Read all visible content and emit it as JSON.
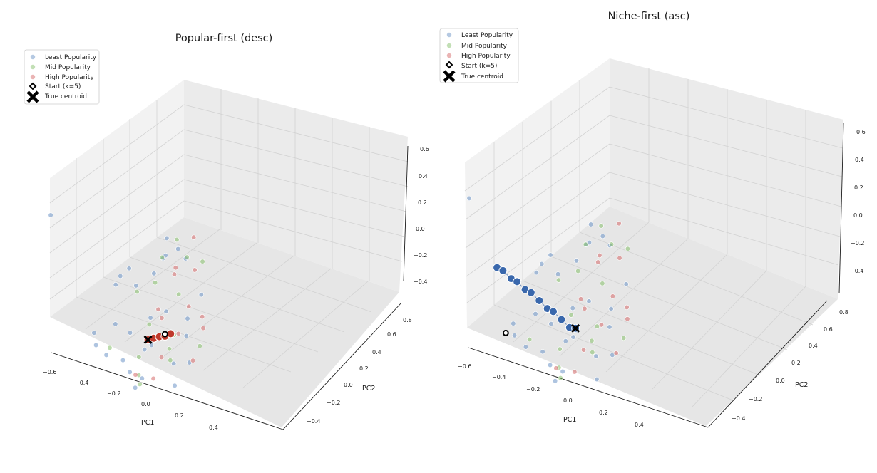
{
  "chart_data": [
    {
      "type": "scatter",
      "title": "Popular-first (desc)",
      "xlabel": "PC1",
      "ylabel": "PC2",
      "zlabel": "",
      "xlim": [
        -0.6,
        0.6
      ],
      "ylim": [
        -0.5,
        0.85
      ],
      "zlim": [
        -0.5,
        0.65
      ],
      "x_ticks": [
        "−0.6",
        "−0.4",
        "−0.2",
        "0.0",
        "0.2",
        "0.4"
      ],
      "y_ticks": [
        "−0.4",
        "−0.2",
        "0.0",
        "0.2",
        "0.4",
        "0.6",
        "0.8"
      ],
      "z_ticks": [
        "−0.4",
        "−0.2",
        "0.0",
        "0.2",
        "0.4",
        "0.6"
      ],
      "legend_position": "top-left",
      "legend": [
        "Least Popularity",
        "Mid Popularity",
        "High Popularity",
        "Start (k=5)",
        "True centroid"
      ],
      "series_colors": {
        "Least Popularity": "#6b93c6",
        "Mid Popularity": "#86c06b",
        "High Popularity": "#d66a6a",
        "path": "#c0392b"
      },
      "start": [
        0.1,
        0.0,
        -0.2
      ],
      "true_centroid": [
        -0.05,
        0.0,
        -0.18
      ],
      "path": [
        [
          -0.05,
          0.0,
          -0.18
        ],
        [
          0.0,
          0.0,
          -0.19
        ],
        [
          0.05,
          0.0,
          -0.2
        ],
        [
          0.1,
          0.0,
          -0.22
        ],
        [
          0.15,
          0.0,
          -0.22
        ]
      ],
      "points": {
        "least": [
          [
            -0.12,
            -0.1,
            -0.15
          ],
          [
            0.05,
            0.2,
            -0.2
          ],
          [
            0.2,
            0.3,
            0.2
          ],
          [
            -0.3,
            0.1,
            0.0
          ],
          [
            -0.2,
            -0.25,
            -0.25
          ],
          [
            0.1,
            -0.2,
            -0.3
          ],
          [
            -0.45,
            0.2,
            -0.1
          ],
          [
            0.0,
            0.4,
            -0.05
          ],
          [
            0.3,
            0.5,
            0.0
          ],
          [
            -0.1,
            0.3,
            0.25
          ],
          [
            -0.25,
            -0.1,
            -0.3
          ],
          [
            0.15,
            0.1,
            -0.1
          ],
          [
            0.25,
            -0.1,
            -0.2
          ],
          [
            -0.35,
            -0.2,
            -0.05
          ],
          [
            0.4,
            0.3,
            0.1
          ],
          [
            -0.15,
            0.15,
            -0.2
          ],
          [
            0.05,
            -0.35,
            -0.35
          ],
          [
            0.35,
            0.6,
            0.05
          ],
          [
            -0.2,
            0.35,
            0.1
          ],
          [
            0.0,
            0.05,
            -0.3
          ],
          [
            -0.55,
            -0.1,
            0.1
          ],
          [
            0.45,
            0.6,
            -0.1
          ],
          [
            -0.05,
            -0.15,
            -0.05
          ],
          [
            0.2,
            -0.3,
            -0.25
          ],
          [
            -0.4,
            0.05,
            -0.2
          ],
          [
            0.1,
            0.25,
            0.15
          ],
          [
            -0.3,
            -0.35,
            -0.2
          ],
          [
            0.3,
            0.0,
            -0.15
          ],
          [
            0.5,
            0.2,
            -0.2
          ],
          [
            -0.1,
            0.5,
            0.0
          ],
          [
            -0.6,
            0.8,
            0.55
          ]
        ],
        "mid": [
          [
            0.3,
            0.2,
            -0.1
          ],
          [
            0.45,
            0.4,
            0.0
          ],
          [
            -0.2,
            -0.2,
            -0.35
          ],
          [
            0.1,
            -0.1,
            -0.25
          ],
          [
            -0.35,
            0.1,
            -0.2
          ],
          [
            0.2,
            0.05,
            -0.3
          ],
          [
            0.55,
            0.3,
            0.0
          ],
          [
            -0.05,
            0.25,
            0.05
          ],
          [
            0.35,
            -0.15,
            -0.3
          ],
          [
            -0.25,
            -0.3,
            -0.15
          ],
          [
            0.0,
            0.1,
            -0.15
          ],
          [
            0.4,
            0.5,
            0.1
          ],
          [
            0.15,
            0.35,
            -0.05
          ],
          [
            -0.15,
            -0.05,
            -0.25
          ],
          [
            0.25,
            0.45,
            0.05
          ],
          [
            0.05,
            -0.25,
            -0.2
          ]
        ],
        "high": [
          [
            0.2,
            -0.05,
            -0.2
          ],
          [
            0.35,
            0.1,
            -0.15
          ],
          [
            0.5,
            0.35,
            -0.1
          ],
          [
            0.25,
            -0.25,
            -0.3
          ],
          [
            0.15,
            0.2,
            -0.25
          ],
          [
            0.45,
            0.05,
            -0.25
          ],
          [
            -0.1,
            -0.25,
            -0.3
          ],
          [
            0.3,
            0.3,
            0.0
          ],
          [
            0.55,
            0.5,
            0.05
          ],
          [
            0.05,
            -0.05,
            -0.35
          ],
          [
            0.4,
            -0.1,
            -0.2
          ],
          [
            0.1,
            0.15,
            -0.1
          ],
          [
            0.35,
            0.4,
            -0.05
          ],
          [
            -0.2,
            -0.1,
            -0.35
          ]
        ]
      }
    },
    {
      "type": "scatter",
      "title": "Niche-first (asc)",
      "xlabel": "PC1",
      "ylabel": "PC2",
      "zlabel": "",
      "xlim": [
        -0.6,
        0.6
      ],
      "ylim": [
        -0.5,
        0.85
      ],
      "zlim": [
        -0.5,
        0.65
      ],
      "x_ticks": [
        "−0.6",
        "−0.4",
        "−0.2",
        "0.0",
        "0.2",
        "0.4"
      ],
      "y_ticks": [
        "−0.4",
        "−0.2",
        "0.0",
        "0.2",
        "0.4",
        "0.6",
        "0.8"
      ],
      "z_ticks": [
        "−0.4",
        "−0.2",
        "0.0",
        "0.2",
        "0.4",
        "0.6"
      ],
      "legend_position": "top-left",
      "legend": [
        "Least Popularity",
        "Mid Popularity",
        "High Popularity",
        "Start (k=5)",
        "True centroid"
      ],
      "series_colors": {
        "Least Popularity": "#6b93c6",
        "Mid Popularity": "#86c06b",
        "High Popularity": "#d66a6a",
        "path": "#3a68ac"
      },
      "start": [
        -0.55,
        0.1,
        -0.05
      ],
      "true_centroid": [
        0.0,
        0.0,
        -0.18
      ],
      "path": [
        [
          -0.55,
          0.3,
          0.35
        ],
        [
          -0.5,
          0.3,
          0.3
        ],
        [
          -0.45,
          0.25,
          0.25
        ],
        [
          -0.4,
          0.25,
          0.2
        ],
        [
          -0.35,
          0.2,
          0.15
        ],
        [
          -0.3,
          0.2,
          0.1
        ],
        [
          -0.25,
          0.15,
          0.05
        ],
        [
          -0.2,
          0.1,
          0.0
        ],
        [
          -0.15,
          0.1,
          -0.05
        ],
        [
          -0.1,
          0.05,
          -0.1
        ],
        [
          -0.05,
          0.0,
          -0.15
        ],
        [
          0.0,
          0.0,
          -0.18
        ]
      ],
      "points": {
        "least": [
          [
            -0.12,
            -0.1,
            -0.15
          ],
          [
            0.05,
            0.2,
            -0.2
          ],
          [
            0.2,
            0.3,
            0.2
          ],
          [
            -0.3,
            0.1,
            0.0
          ],
          [
            -0.2,
            -0.25,
            -0.25
          ],
          [
            0.1,
            -0.2,
            -0.3
          ],
          [
            -0.45,
            0.2,
            -0.1
          ],
          [
            0.0,
            0.4,
            -0.05
          ],
          [
            0.3,
            0.5,
            0.0
          ],
          [
            -0.1,
            0.3,
            0.25
          ],
          [
            -0.25,
            -0.1,
            -0.3
          ],
          [
            0.15,
            0.1,
            -0.1
          ],
          [
            0.25,
            -0.1,
            -0.2
          ],
          [
            -0.35,
            -0.2,
            -0.05
          ],
          [
            0.4,
            0.3,
            0.1
          ],
          [
            -0.15,
            0.15,
            -0.2
          ],
          [
            0.05,
            -0.35,
            -0.35
          ],
          [
            0.35,
            0.6,
            0.05
          ],
          [
            -0.2,
            0.35,
            0.1
          ],
          [
            0.0,
            0.05,
            -0.3
          ],
          [
            -0.55,
            -0.1,
            0.1
          ],
          [
            0.45,
            0.6,
            -0.1
          ],
          [
            -0.05,
            -0.15,
            -0.05
          ],
          [
            0.2,
            -0.3,
            -0.25
          ],
          [
            -0.4,
            0.05,
            -0.2
          ],
          [
            0.1,
            0.25,
            0.15
          ],
          [
            -0.3,
            -0.35,
            -0.2
          ],
          [
            0.3,
            0.0,
            -0.15
          ],
          [
            0.5,
            0.2,
            -0.2
          ],
          [
            -0.1,
            0.5,
            0.0
          ],
          [
            -0.6,
            0.8,
            0.55
          ]
        ],
        "mid": [
          [
            0.3,
            0.2,
            -0.1
          ],
          [
            0.45,
            0.4,
            0.0
          ],
          [
            -0.2,
            -0.2,
            -0.35
          ],
          [
            0.1,
            -0.1,
            -0.25
          ],
          [
            -0.35,
            0.1,
            -0.2
          ],
          [
            0.2,
            0.05,
            -0.3
          ],
          [
            0.55,
            0.3,
            0.0
          ],
          [
            -0.05,
            0.25,
            0.05
          ],
          [
            0.35,
            -0.15,
            -0.3
          ],
          [
            -0.25,
            -0.3,
            -0.15
          ],
          [
            0.0,
            0.1,
            -0.15
          ],
          [
            0.4,
            0.5,
            0.1
          ],
          [
            0.15,
            0.35,
            -0.05
          ],
          [
            -0.15,
            -0.05,
            -0.25
          ],
          [
            0.25,
            0.45,
            0.05
          ],
          [
            0.05,
            -0.25,
            -0.2
          ]
        ],
        "high": [
          [
            0.2,
            -0.05,
            -0.2
          ],
          [
            0.35,
            0.1,
            -0.15
          ],
          [
            0.5,
            0.35,
            -0.1
          ],
          [
            0.25,
            -0.25,
            -0.3
          ],
          [
            0.15,
            0.2,
            -0.25
          ],
          [
            0.45,
            0.05,
            -0.25
          ],
          [
            -0.1,
            -0.25,
            -0.3
          ],
          [
            0.3,
            0.3,
            0.0
          ],
          [
            0.55,
            0.5,
            0.05
          ],
          [
            0.05,
            -0.05,
            -0.35
          ],
          [
            0.4,
            -0.1,
            -0.2
          ],
          [
            0.1,
            0.15,
            -0.1
          ],
          [
            0.35,
            0.4,
            -0.05
          ],
          [
            -0.2,
            -0.1,
            -0.35
          ]
        ]
      }
    }
  ]
}
